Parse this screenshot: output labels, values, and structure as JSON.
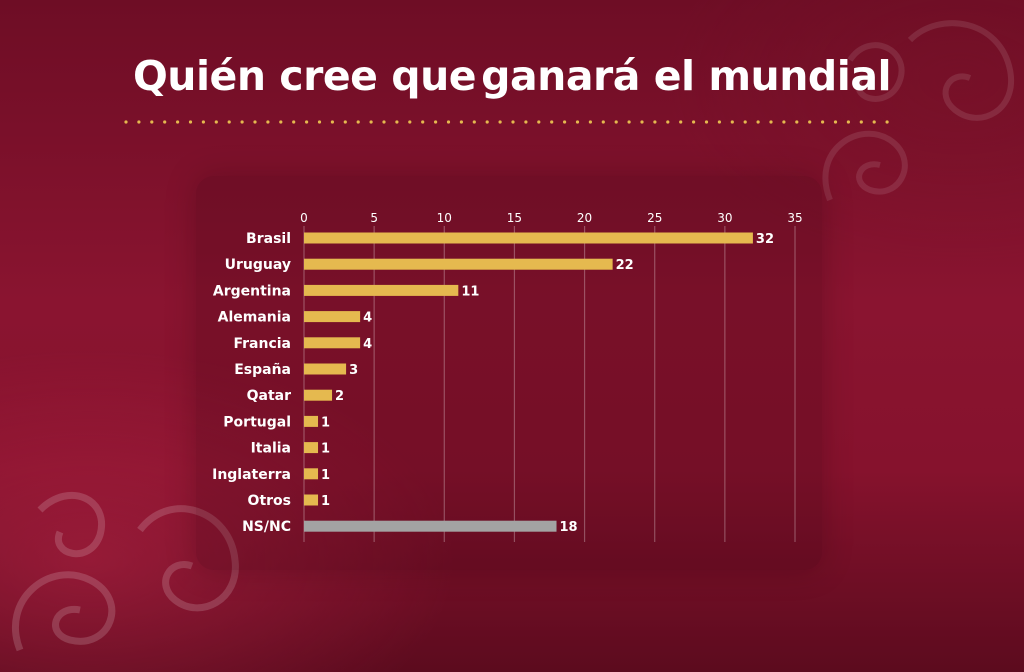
{
  "title": {
    "part1": "Quién cree que",
    "part2": "ganará el mundial"
  },
  "colors": {
    "background": "#86122d",
    "bar": "#e5b94f",
    "bar_nsnc": "#a3a3a3",
    "title_accent": "#e5b94f",
    "text": "#ffffff",
    "gridline": "#ffffff"
  },
  "chart_data": {
    "type": "bar",
    "orientation": "horizontal",
    "title": "",
    "xlabel": "",
    "ylabel": "",
    "xlim": [
      0,
      35
    ],
    "ticks": [
      0,
      5,
      10,
      15,
      20,
      25,
      30,
      35
    ],
    "grid": true,
    "legend": "none",
    "categories": [
      "Brasil",
      "Uruguay",
      "Argentina",
      "Alemania",
      "Francia",
      "España",
      "Qatar",
      "Portugal",
      "Italia",
      "Inglaterra",
      "Otros",
      "NS/NC"
    ],
    "values": [
      32,
      22,
      11,
      4,
      4,
      3,
      2,
      1,
      1,
      1,
      1,
      18
    ],
    "data_labels": [
      "32",
      "22",
      "11",
      "4",
      "4",
      "3",
      "2",
      "1",
      "1",
      "1",
      "1",
      "18"
    ]
  }
}
